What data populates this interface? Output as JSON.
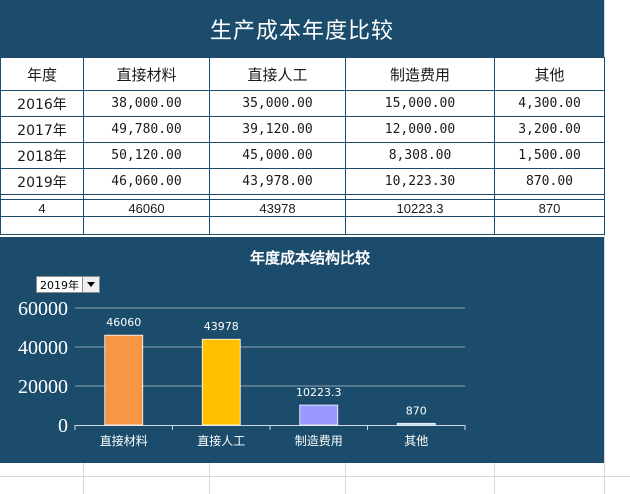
{
  "title": "生产成本年度比较",
  "table": {
    "headers": [
      "年度",
      "直接材料",
      "直接人工",
      "制造费用",
      "其他"
    ],
    "rows": [
      [
        "2016年",
        "38,000.00",
        "35,000.00",
        "15,000.00",
        "4,300.00"
      ],
      [
        "2017年",
        "49,780.00",
        "39,120.00",
        "12,000.00",
        "3,200.00"
      ],
      [
        "2018年",
        "50,120.00",
        "45,000.00",
        "8,308.00",
        "1,500.00"
      ],
      [
        "2019年",
        "46,060.00",
        "43,978.00",
        "10,223.30",
        "870.00"
      ]
    ],
    "summary": [
      "4",
      "46060",
      "43978",
      "10223.3",
      "870"
    ]
  },
  "chart_title": "年度成本结构比较",
  "year_select": {
    "value": "2019年"
  },
  "chart_data": {
    "type": "bar",
    "title": "年度成本结构比较",
    "categories": [
      "直接材料",
      "直接人工",
      "制造费用",
      "其他"
    ],
    "values": [
      46060,
      43978,
      10223.3,
      870
    ],
    "data_labels": [
      "46060",
      "43978",
      "10223.3",
      "870"
    ],
    "colors": [
      "#f79646",
      "#ffc000",
      "#9999ff",
      "#9dc3e6"
    ],
    "ylim": [
      0,
      60000
    ],
    "yticks": [
      0,
      20000,
      40000,
      60000
    ],
    "ytick_labels": [
      "0",
      "20000",
      "40000",
      "60000"
    ],
    "grid": true,
    "legend": "none"
  },
  "colors": {
    "panel": "#1b4c6b",
    "grid_line": "#d9d9d9"
  }
}
